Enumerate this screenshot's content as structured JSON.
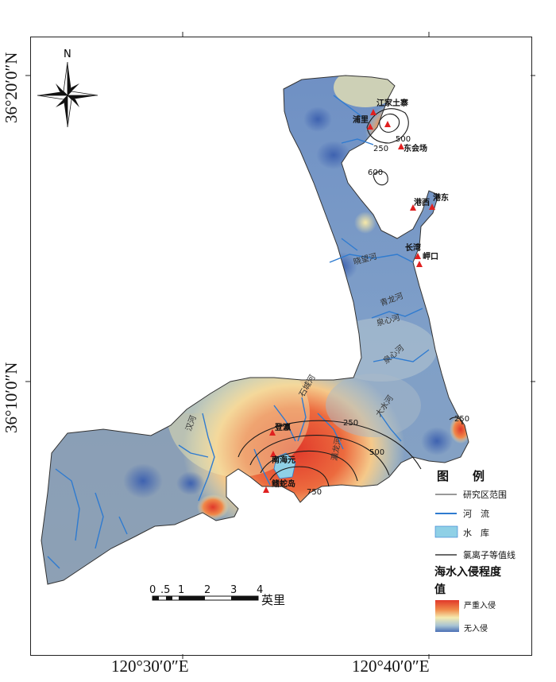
{
  "lat_labels": {
    "top": "36°20′0″N",
    "bottom": "36°10′0″N"
  },
  "lon_labels": {
    "left": "120°30′0″E",
    "right": "120°40′0″E"
  },
  "north_arrow": {
    "label": "N"
  },
  "scale_bar": {
    "ticks": [
      "0",
      ".5",
      "1",
      "2",
      "3",
      "4"
    ],
    "unit": "英里"
  },
  "places": [
    {
      "name": "江家土寨"
    },
    {
      "name": "浦里"
    },
    {
      "name": "东会场"
    },
    {
      "name": "港东"
    },
    {
      "name": "港西"
    },
    {
      "name": "长湾"
    },
    {
      "name": "岬口"
    },
    {
      "name": "登瀛"
    },
    {
      "name": "南海元"
    },
    {
      "name": "鳍蛇岛"
    }
  ],
  "rivers": [
    {
      "name": "晓望河"
    },
    {
      "name": "青龙河"
    },
    {
      "name": "泉心河"
    },
    {
      "name": "泉心河"
    },
    {
      "name": "石城河"
    },
    {
      "name": "汉河"
    },
    {
      "name": "大水河"
    },
    {
      "name": "瀛龙河"
    }
  ],
  "contours": [
    "500",
    "250",
    "600",
    "250",
    "500",
    "750",
    "250"
  ],
  "legend": {
    "title": "图　　例",
    "items": [
      {
        "label": "研究区范围",
        "icon": "thin-line"
      },
      {
        "label": "河　流",
        "icon": "blue-line"
      },
      {
        "label": "水　库",
        "icon": "blue-box"
      },
      {
        "label": "氯离子等值线",
        "icon": "black-line"
      }
    ],
    "gradient_title": "海水入侵程度值",
    "gradient_high": "严重入侵",
    "gradient_low": "无入侵",
    "colors": {
      "high": "#e0382a",
      "mid_high": "#f08a4a",
      "mid": "#f5ebb0",
      "mid_low": "#a8c4d4",
      "low": "#4a6fb5",
      "river": "#2f7bd0",
      "reservoir": "#8fd0e6"
    }
  }
}
